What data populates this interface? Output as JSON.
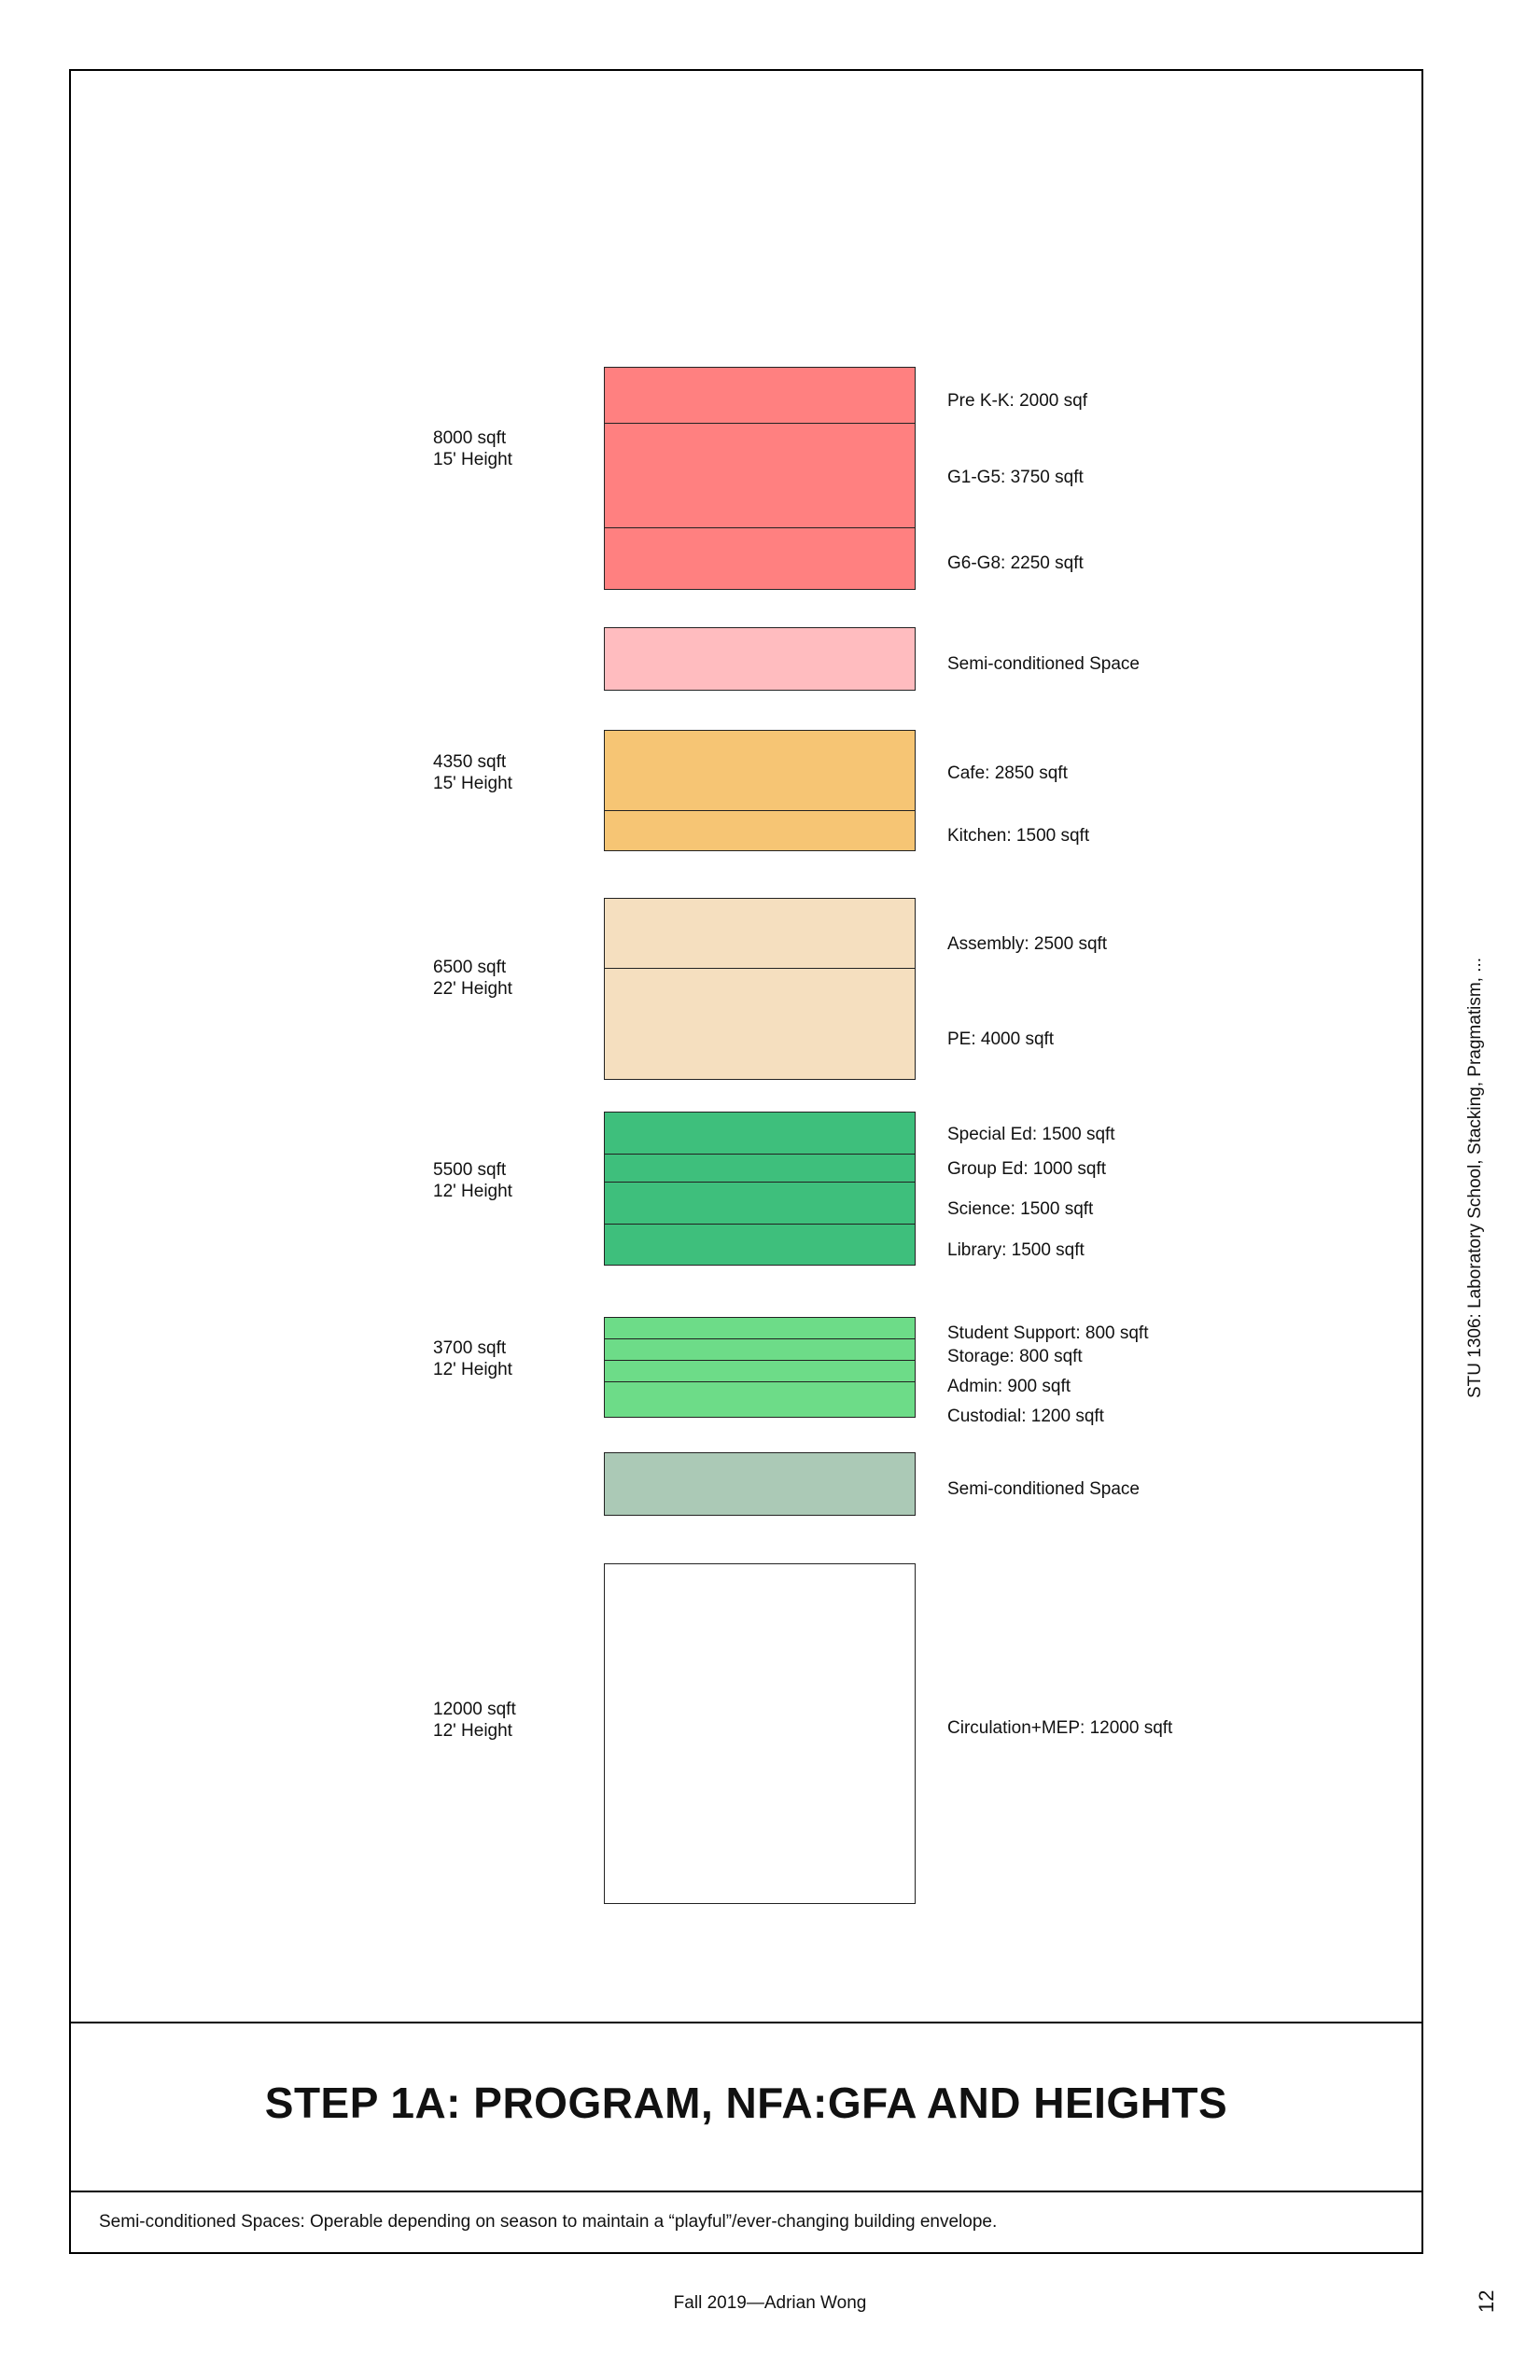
{
  "title": "STEP 1A: PROGRAM, NFA:GFA AND HEIGHTS",
  "footnote": "Semi-conditioned Spaces: Operable depending on season to maintain a “playful”/ever-changing building envelope.",
  "footer": "Fall 2019—Adrian Wong",
  "page_number": "12",
  "course_caption": "STU 1306: Laboratory School, Stacking, Pragmatism, ...",
  "groups": [
    {
      "summary": [
        "8000 sqft",
        "15' Height"
      ],
      "color": "#ff8080",
      "spaces": [
        {
          "label": "Pre K-K: 2000 sqf",
          "sqft": 2000
        },
        {
          "label": "G1-G5: 3750 sqft",
          "sqft": 3750
        },
        {
          "label": "G6-G8: 2250 sqft",
          "sqft": 2250
        }
      ]
    },
    {
      "summary": [],
      "color": "#ffbcbf",
      "spaces": [
        {
          "label": "Semi-conditioned Space"
        }
      ]
    },
    {
      "summary": [
        "4350 sqft",
        "15' Height"
      ],
      "color": "#f6c574",
      "spaces": [
        {
          "label": "Cafe: 2850 sqft",
          "sqft": 2850
        },
        {
          "label": "Kitchen: 1500 sqft",
          "sqft": 1500
        }
      ]
    },
    {
      "summary": [
        "6500 sqft",
        "22' Height"
      ],
      "color": "#f5dfbf",
      "spaces": [
        {
          "label": "Assembly: 2500 sqft",
          "sqft": 2500
        },
        {
          "label": "PE: 4000 sqft",
          "sqft": 4000
        }
      ]
    },
    {
      "summary": [
        "5500 sqft",
        "12' Height"
      ],
      "color": "#3ebf7c",
      "spaces": [
        {
          "label": "Special Ed: 1500 sqft",
          "sqft": 1500
        },
        {
          "label": "Group Ed: 1000 sqft",
          "sqft": 1000
        },
        {
          "label": "Science: 1500 sqft",
          "sqft": 1500
        },
        {
          "label": "Library: 1500 sqft",
          "sqft": 1500
        }
      ]
    },
    {
      "summary": [
        "3700 sqft",
        "12' Height"
      ],
      "color": "#6ddc88",
      "spaces": [
        {
          "label": "Student Support: 800 sqft",
          "sqft": 800
        },
        {
          "label": "Storage: 800 sqft",
          "sqft": 800
        },
        {
          "label": "Admin: 900 sqft",
          "sqft": 900
        },
        {
          "label": "Custodial: 1200 sqft",
          "sqft": 1200
        }
      ]
    },
    {
      "summary": [],
      "color": "#abc9b6",
      "spaces": [
        {
          "label": "Semi-conditioned Space"
        }
      ]
    },
    {
      "summary": [
        "12000 sqft",
        "12' Height"
      ],
      "color": "#ffffff",
      "spaces": [
        {
          "label": "Circulation+MEP: 12000 sqft",
          "sqft": 12000
        }
      ]
    }
  ]
}
